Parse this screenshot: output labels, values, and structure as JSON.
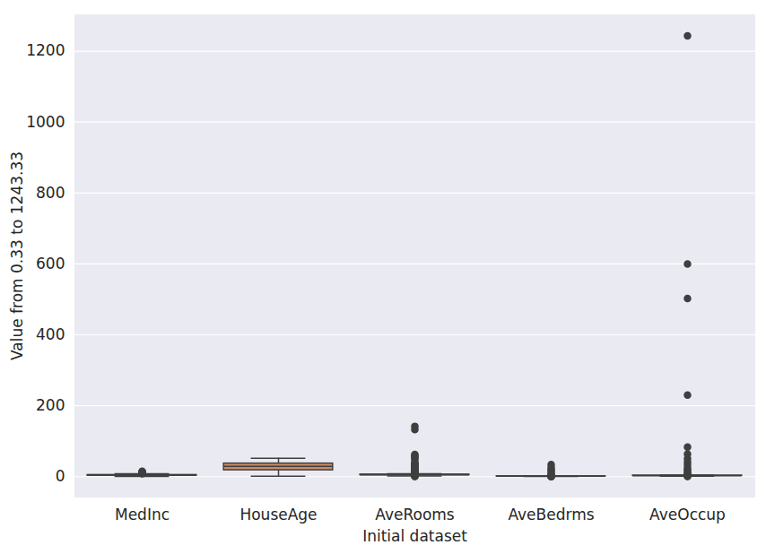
{
  "chart_data": {
    "type": "box",
    "x_label": "Initial dataset",
    "y_label": "Value from 0.33 to 1243.33",
    "categories": [
      "MedInc",
      "HouseAge",
      "AveRooms",
      "AveBedrms",
      "AveOccup"
    ],
    "colors": [
      "#5875a4",
      "#cc8963",
      "#5f9e6e",
      "#b55d60",
      "#857aab"
    ],
    "whisker_low": [
      0.5,
      1,
      2.03,
      0.87,
      1.16
    ],
    "q1": [
      2.56,
      18,
      4.44,
      1.01,
      2.43
    ],
    "median": [
      3.53,
      29,
      5.23,
      1.05,
      2.82
    ],
    "q3": [
      4.74,
      37,
      6.05,
      1.1,
      3.28
    ],
    "whisker_high": [
      8.01,
      52,
      8.47,
      1.24,
      4.56
    ],
    "outliers": [
      [
        8.5,
        9.5,
        10.5,
        11.5,
        12.5,
        13.5,
        15
      ],
      [],
      [
        0.85,
        1.2,
        1.6,
        10,
        12,
        14,
        16,
        18,
        20,
        22.2,
        24.7,
        25.6,
        28.6,
        29.8,
        34,
        36.1,
        37.1,
        39.8,
        47.5,
        52.8,
        56.3,
        59.9,
        62.4,
        132.5,
        141.9
      ],
      [
        0.33,
        0.5,
        0.7,
        1.5,
        2,
        3,
        5,
        10,
        15,
        20,
        25.6,
        34.07
      ],
      [
        0.69,
        1,
        5,
        7,
        10,
        15,
        20,
        25,
        33.95,
        41.5,
        51.4,
        63.75,
        83.17,
        230.17,
        502.46,
        599.71,
        1243.33
      ]
    ],
    "ylim": [
      -60,
      1305
    ],
    "yticks": [
      0,
      200,
      400,
      600,
      800,
      1000,
      1200
    ],
    "grid": true
  }
}
